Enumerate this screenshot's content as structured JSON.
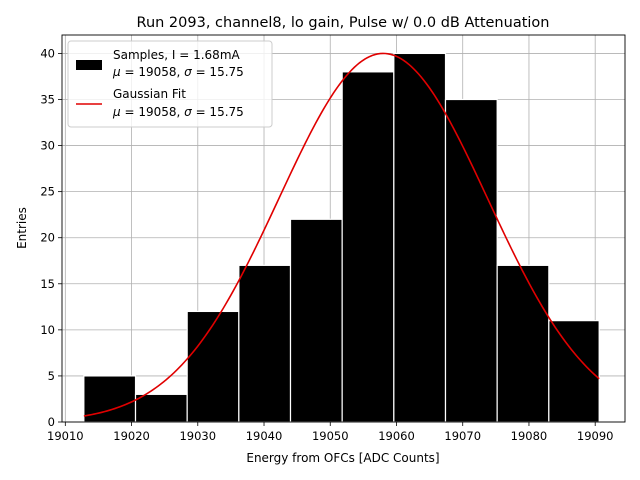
{
  "chart_data": {
    "type": "bar",
    "title": "Run 2093, channel8, lo gain, Pulse w/ 0.0 dB Attenuation",
    "xlabel": "Energy from OFCs [ADC Counts]",
    "ylabel": "Entries",
    "xlim": [
      19009.5,
      19094.5
    ],
    "ylim": [
      0,
      42
    ],
    "xticks": [
      19010,
      19020,
      19030,
      19040,
      19050,
      19060,
      19070,
      19080,
      19090
    ],
    "xtick_labels": [
      "19010",
      "19020",
      "19030",
      "19040",
      "19050",
      "19060",
      "19070",
      "19080",
      "19090"
    ],
    "yticks": [
      0,
      5,
      10,
      15,
      20,
      25,
      30,
      35,
      40
    ],
    "ytick_labels": [
      "0",
      "5",
      "10",
      "15",
      "20",
      "25",
      "30",
      "35",
      "40"
    ],
    "grid": true,
    "legend_position": "upper-left",
    "bar_color": "#000000",
    "bar_edge_color": "#ffffff",
    "fit_color": "#e00000",
    "bins": [
      {
        "x0": 19012.8,
        "x1": 19020.6,
        "value": 5
      },
      {
        "x0": 19020.6,
        "x1": 19028.4,
        "value": 3
      },
      {
        "x0": 19028.4,
        "x1": 19036.2,
        "value": 12
      },
      {
        "x0": 19036.2,
        "x1": 19044.0,
        "value": 17
      },
      {
        "x0": 19044.0,
        "x1": 19051.8,
        "value": 22
      },
      {
        "x0": 19051.8,
        "x1": 19059.6,
        "value": 38
      },
      {
        "x0": 19059.6,
        "x1": 19067.4,
        "value": 40
      },
      {
        "x0": 19067.4,
        "x1": 19075.2,
        "value": 35
      },
      {
        "x0": 19075.2,
        "x1": 19083.0,
        "value": 17
      },
      {
        "x0": 19083.0,
        "x1": 19090.6,
        "value": 11
      }
    ],
    "fit": {
      "amplitude": 40,
      "mu": 19058,
      "sigma": 15.75,
      "x_range": [
        19012.8,
        19090.6
      ]
    },
    "series": [
      {
        "name": "Samples, I = 1.68mA",
        "stats": {
          "mu_symbol": "μ",
          "mu_eq": " = 19058, ",
          "sigma_symbol": "σ",
          "sigma_eq": " = 15.75"
        }
      },
      {
        "name": "Gaussian Fit",
        "stats": {
          "mu_symbol": "μ",
          "mu_eq": " = 19058, ",
          "sigma_symbol": "σ",
          "sigma_eq": " = 15.75"
        }
      }
    ]
  }
}
